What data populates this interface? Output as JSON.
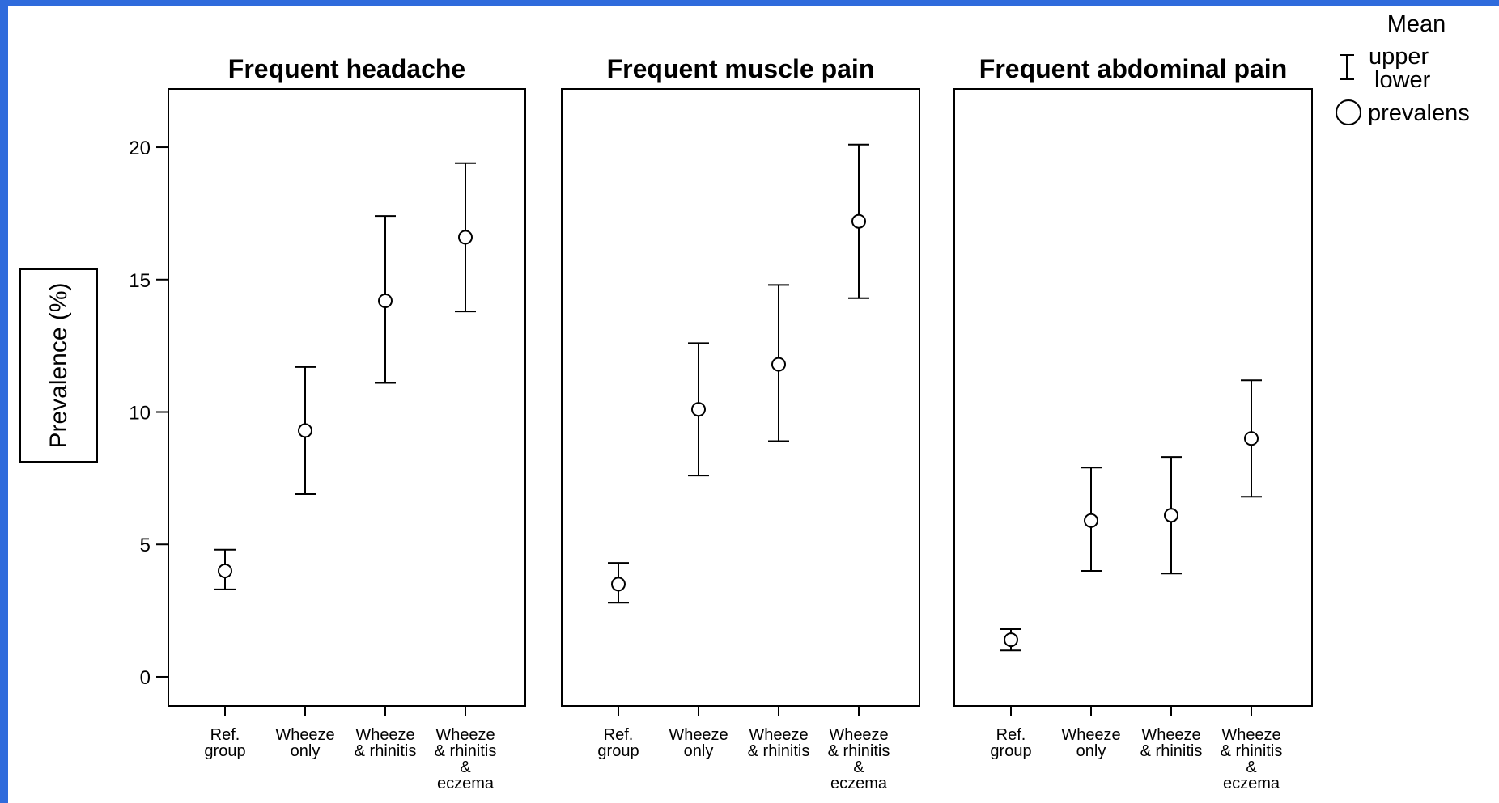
{
  "y_axis": {
    "label": "Prevalence (%)",
    "ticks": [
      0,
      5,
      10,
      15,
      20
    ],
    "tick_labels": [
      "0",
      "5",
      "10",
      "15",
      "20"
    ]
  },
  "legend": {
    "title": "Mean",
    "errorbar_upper_label": "upper",
    "errorbar_lower_label": "lower",
    "point_label": "prevalens"
  },
  "chart_data": {
    "type": "scatter",
    "error_bars": true,
    "ylabel": "Prevalence (%)",
    "ylim": [
      -1.1,
      22.2
    ],
    "grid": false,
    "legend_position": "top-right",
    "categories": [
      [
        "Ref.",
        "group"
      ],
      [
        "Wheeze",
        "only"
      ],
      [
        "Wheeze",
        "& rhinitis"
      ],
      [
        "Wheeze",
        "& rhinitis",
        "&",
        "eczema"
      ]
    ],
    "panels": [
      {
        "title": "Frequent headache",
        "mean": [
          4.0,
          9.3,
          14.2,
          16.6
        ],
        "lower": [
          3.3,
          6.9,
          11.1,
          13.8
        ],
        "upper": [
          4.8,
          11.7,
          17.4,
          19.4
        ]
      },
      {
        "title": "Frequent muscle pain",
        "mean": [
          3.5,
          10.1,
          11.8,
          17.2
        ],
        "lower": [
          2.8,
          7.6,
          8.9,
          14.3
        ],
        "upper": [
          4.3,
          12.6,
          14.8,
          20.1
        ]
      },
      {
        "title": "Frequent abdominal pain",
        "mean": [
          1.4,
          5.9,
          6.1,
          9.0
        ],
        "lower": [
          1.0,
          4.0,
          3.9,
          6.8
        ],
        "upper": [
          1.8,
          7.9,
          8.3,
          11.2
        ]
      }
    ]
  }
}
